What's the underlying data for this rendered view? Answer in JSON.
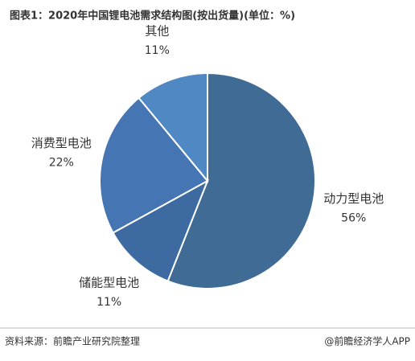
{
  "chart_data": {
    "type": "pie",
    "title": "图表1：2020年中国锂电池需求结构图(按出货量)(单位：%)",
    "categories": [
      "动力型电池",
      "储能型电池",
      "消费型电池",
      "其他"
    ],
    "values": [
      56,
      11,
      22,
      11
    ],
    "value_labels": [
      "56%",
      "11%",
      "22%",
      "11%"
    ],
    "colors": [
      "#3f6b94",
      "#3d6aa1",
      "#4576b3",
      "#5088c3"
    ],
    "source": "资料来源：前瞻产业研究院整理",
    "credit": "@前瞻经济学人APP"
  }
}
